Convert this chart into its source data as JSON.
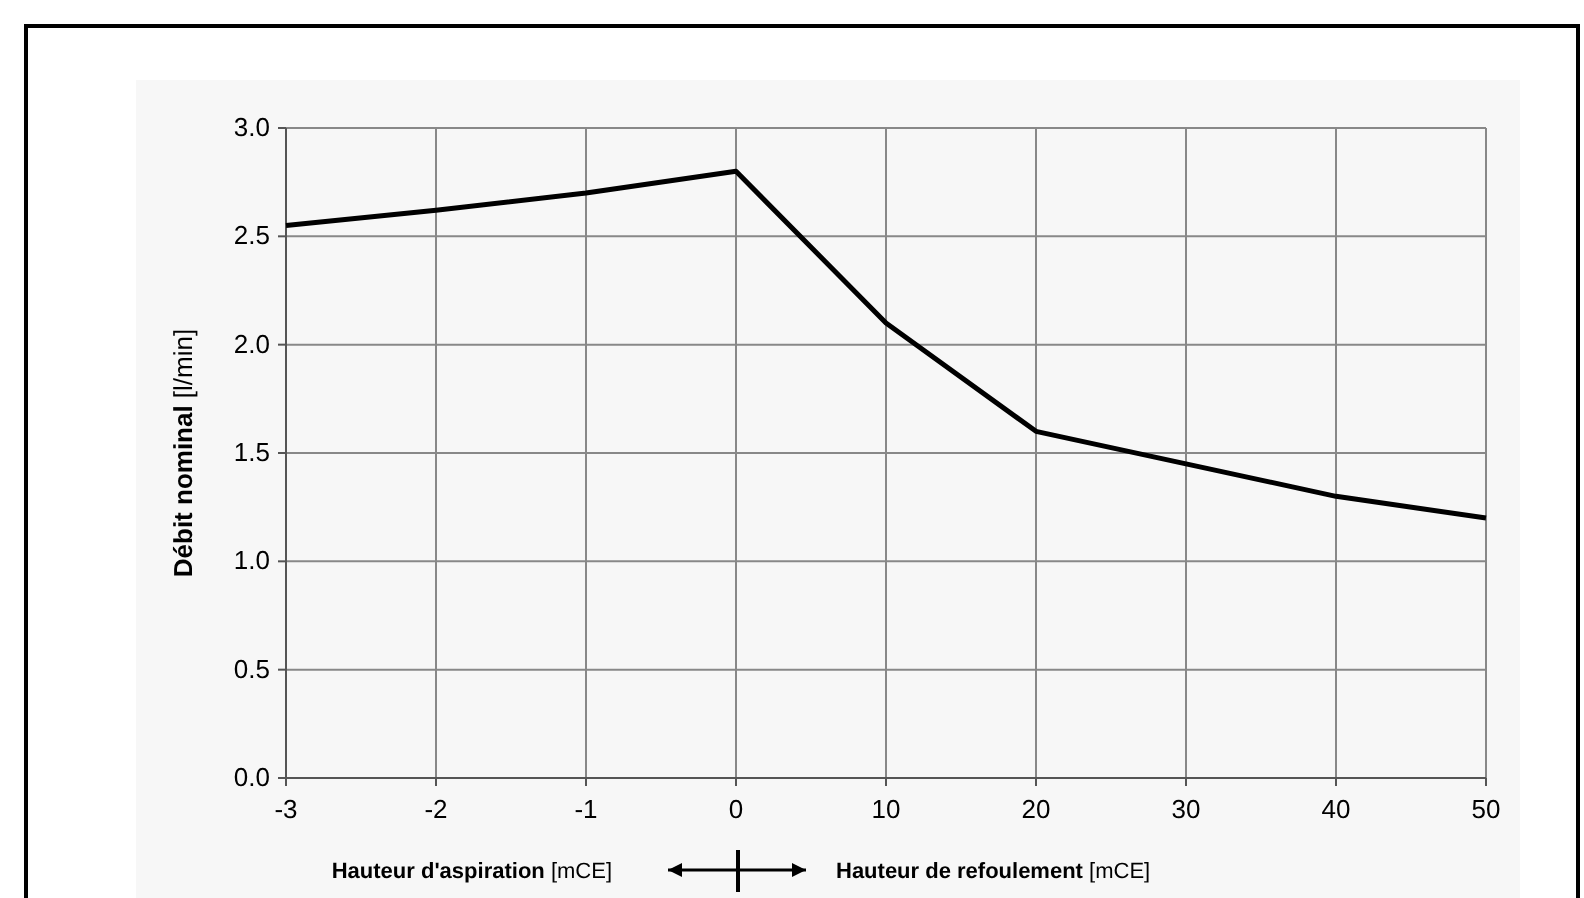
{
  "chart_data": {
    "type": "line",
    "categories": [
      "-3",
      "-2",
      "-1",
      "0",
      "10",
      "20",
      "30",
      "40",
      "50"
    ],
    "series": [
      {
        "color": "#000000",
        "values": [
          2.55,
          2.62,
          2.7,
          2.8,
          2.1,
          1.6,
          1.45,
          1.3,
          1.2
        ]
      }
    ],
    "ylabel": "Débit nominal [l/min]",
    "xlabel": "Hauteur d'aspiration [mCE]",
    "annotations": [
      "Hauteur de refoulement [mCE]"
    ],
    "ylim": [
      0,
      3
    ],
    "yticks": [
      {
        "value": 0,
        "label": "0.0"
      },
      {
        "value": 0.5,
        "label": "0.5"
      },
      {
        "value": 1,
        "label": "1.0"
      },
      {
        "value": 1.5,
        "label": "1.5"
      },
      {
        "value": 2,
        "label": "2.0"
      },
      {
        "value": 2.5,
        "label": "2.5"
      },
      {
        "value": 3,
        "label": "3.0"
      }
    ],
    "grid": true,
    "marker": "none",
    "line_style": "solid"
  }
}
